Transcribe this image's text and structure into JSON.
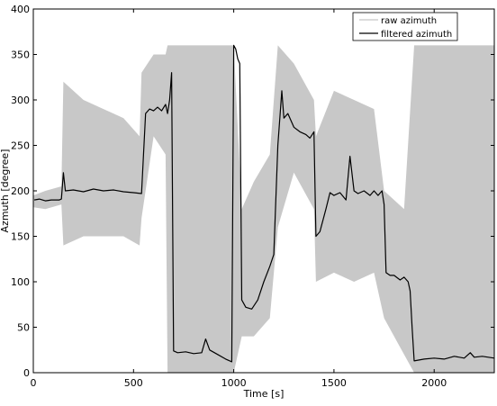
{
  "chart_data": {
    "type": "line",
    "title": "",
    "xlabel": "Time [s]",
    "ylabel": "Azmuth [degree]",
    "xlim": [
      0,
      2300
    ],
    "ylim": [
      0,
      400
    ],
    "xticks": [
      0,
      500,
      1000,
      1500,
      2000
    ],
    "yticks": [
      0,
      50,
      100,
      150,
      200,
      250,
      300,
      350,
      400
    ],
    "grid": false,
    "legend": {
      "placement": "top-right"
    },
    "colors": {
      "raw": "#c8c8c8",
      "filtered": "#000000",
      "axes": "#000000"
    },
    "series": [
      {
        "name": "raw azimuth",
        "role": "band",
        "points": [
          [
            0,
            182,
            195
          ],
          [
            60,
            180,
            200
          ],
          [
            140,
            185,
            205
          ],
          [
            150,
            140,
            320
          ],
          [
            250,
            150,
            300
          ],
          [
            350,
            150,
            290
          ],
          [
            450,
            150,
            280
          ],
          [
            530,
            140,
            260
          ],
          [
            540,
            170,
            330
          ],
          [
            600,
            260,
            350
          ],
          [
            660,
            240,
            350
          ],
          [
            670,
            0,
            360
          ],
          [
            1000,
            0,
            360
          ],
          [
            1040,
            40,
            180
          ],
          [
            1100,
            40,
            210
          ],
          [
            1180,
            60,
            240
          ],
          [
            1220,
            160,
            360
          ],
          [
            1300,
            220,
            340
          ],
          [
            1400,
            180,
            300
          ],
          [
            1410,
            100,
            260
          ],
          [
            1500,
            110,
            310
          ],
          [
            1600,
            100,
            300
          ],
          [
            1700,
            110,
            290
          ],
          [
            1750,
            60,
            200
          ],
          [
            1850,
            20,
            180
          ],
          [
            1900,
            0,
            360
          ],
          [
            2300,
            0,
            360
          ]
        ]
      },
      {
        "name": "filtered azimuth",
        "role": "line",
        "points": [
          [
            5,
            190
          ],
          [
            30,
            191
          ],
          [
            60,
            189
          ],
          [
            90,
            190
          ],
          [
            130,
            190
          ],
          [
            140,
            191
          ],
          [
            150,
            220
          ],
          [
            160,
            200
          ],
          [
            200,
            201
          ],
          [
            250,
            199
          ],
          [
            300,
            202
          ],
          [
            350,
            200
          ],
          [
            400,
            201
          ],
          [
            450,
            199
          ],
          [
            500,
            198
          ],
          [
            540,
            197
          ],
          [
            560,
            285
          ],
          [
            580,
            290
          ],
          [
            600,
            288
          ],
          [
            620,
            292
          ],
          [
            640,
            288
          ],
          [
            660,
            295
          ],
          [
            670,
            285
          ],
          [
            680,
            300
          ],
          [
            690,
            330
          ],
          [
            700,
            24
          ],
          [
            720,
            22
          ],
          [
            760,
            23
          ],
          [
            800,
            21
          ],
          [
            840,
            22
          ],
          [
            860,
            37
          ],
          [
            880,
            25
          ],
          [
            920,
            20
          ],
          [
            960,
            15
          ],
          [
            990,
            12
          ],
          [
            1000,
            360
          ],
          [
            1010,
            356
          ],
          [
            1020,
            345
          ],
          [
            1030,
            340
          ],
          [
            1040,
            80
          ],
          [
            1060,
            72
          ],
          [
            1090,
            70
          ],
          [
            1120,
            80
          ],
          [
            1150,
            100
          ],
          [
            1180,
            117
          ],
          [
            1200,
            130
          ],
          [
            1220,
            250
          ],
          [
            1240,
            310
          ],
          [
            1250,
            280
          ],
          [
            1270,
            285
          ],
          [
            1300,
            270
          ],
          [
            1330,
            265
          ],
          [
            1360,
            262
          ],
          [
            1380,
            258
          ],
          [
            1400,
            265
          ],
          [
            1410,
            150
          ],
          [
            1430,
            155
          ],
          [
            1460,
            180
          ],
          [
            1480,
            198
          ],
          [
            1500,
            195
          ],
          [
            1530,
            198
          ],
          [
            1560,
            190
          ],
          [
            1580,
            238
          ],
          [
            1600,
            200
          ],
          [
            1620,
            197
          ],
          [
            1650,
            200
          ],
          [
            1680,
            195
          ],
          [
            1700,
            200
          ],
          [
            1720,
            195
          ],
          [
            1740,
            200
          ],
          [
            1750,
            185
          ],
          [
            1760,
            110
          ],
          [
            1780,
            107
          ],
          [
            1800,
            107
          ],
          [
            1830,
            102
          ],
          [
            1850,
            105
          ],
          [
            1870,
            100
          ],
          [
            1880,
            90
          ],
          [
            1890,
            50
          ],
          [
            1900,
            13
          ],
          [
            1950,
            15
          ],
          [
            2000,
            16
          ],
          [
            2050,
            15
          ],
          [
            2100,
            18
          ],
          [
            2150,
            16
          ],
          [
            2180,
            22
          ],
          [
            2200,
            17
          ],
          [
            2240,
            18
          ],
          [
            2300,
            16
          ]
        ]
      }
    ]
  }
}
